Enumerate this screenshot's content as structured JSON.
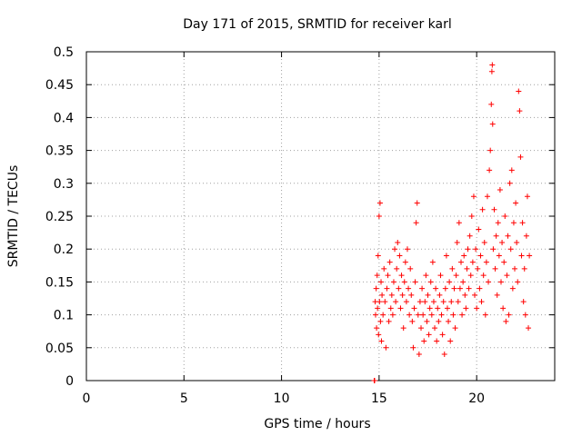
{
  "chart_data": {
    "type": "scatter",
    "title": "Day 171 of 2015, SRMTID for receiver karl",
    "xlabel": "GPS time / hours",
    "ylabel": "SRMTID / TECUs",
    "xlim": [
      0,
      24
    ],
    "ylim": [
      0,
      0.5
    ],
    "xticks": [
      0,
      5,
      10,
      15,
      20
    ],
    "xtick_labels": [
      "0",
      "5",
      "10",
      "15",
      "20"
    ],
    "yticks": [
      0,
      0.05,
      0.1,
      0.15,
      0.2,
      0.25,
      0.3,
      0.35,
      0.4,
      0.45,
      0.5
    ],
    "ytick_labels": [
      "0",
      "0.05",
      "0.1",
      "0.15",
      "0.2",
      "0.25",
      "0.3",
      "0.35",
      "0.4",
      "0.45",
      "0.5"
    ],
    "grid": true,
    "marker": "plus",
    "color": "#ff0000",
    "series": [
      {
        "points": [
          [
            14.75,
            0.0
          ],
          [
            14.76,
            0.0
          ],
          [
            14.77,
            0.0
          ],
          [
            14.8,
            0.12
          ],
          [
            14.82,
            0.1
          ],
          [
            14.85,
            0.14
          ],
          [
            14.87,
            0.08
          ],
          [
            14.9,
            0.16
          ],
          [
            14.92,
            0.11
          ],
          [
            14.95,
            0.19
          ],
          [
            14.97,
            0.07
          ],
          [
            15.0,
            0.25
          ],
          [
            15.02,
            0.12
          ],
          [
            15.05,
            0.27
          ],
          [
            15.07,
            0.09
          ],
          [
            15.1,
            0.15
          ],
          [
            15.12,
            0.06
          ],
          [
            15.15,
            0.13
          ],
          [
            15.2,
            0.1
          ],
          [
            15.25,
            0.17
          ],
          [
            15.3,
            0.12
          ],
          [
            15.35,
            0.05
          ],
          [
            15.4,
            0.14
          ],
          [
            15.45,
            0.16
          ],
          [
            15.5,
            0.09
          ],
          [
            15.55,
            0.18
          ],
          [
            15.6,
            0.11
          ],
          [
            15.65,
            0.13
          ],
          [
            15.7,
            0.1
          ],
          [
            15.75,
            0.15
          ],
          [
            15.8,
            0.2
          ],
          [
            15.85,
            0.12
          ],
          [
            15.9,
            0.17
          ],
          [
            15.95,
            0.21
          ],
          [
            16.0,
            0.14
          ],
          [
            16.05,
            0.19
          ],
          [
            16.1,
            0.11
          ],
          [
            16.15,
            0.16
          ],
          [
            16.2,
            0.13
          ],
          [
            16.25,
            0.08
          ],
          [
            16.3,
            0.15
          ],
          [
            16.35,
            0.18
          ],
          [
            16.4,
            0.12
          ],
          [
            16.45,
            0.2
          ],
          [
            16.5,
            0.14
          ],
          [
            16.55,
            0.1
          ],
          [
            16.6,
            0.17
          ],
          [
            16.65,
            0.13
          ],
          [
            16.7,
            0.09
          ],
          [
            16.75,
            0.05
          ],
          [
            16.8,
            0.11
          ],
          [
            16.85,
            0.15
          ],
          [
            16.9,
            0.24
          ],
          [
            16.95,
            0.27
          ],
          [
            17.0,
            0.1
          ],
          [
            17.05,
            0.04
          ],
          [
            17.1,
            0.12
          ],
          [
            17.15,
            0.08
          ],
          [
            17.2,
            0.14
          ],
          [
            17.25,
            0.1
          ],
          [
            17.3,
            0.06
          ],
          [
            17.35,
            0.12
          ],
          [
            17.4,
            0.16
          ],
          [
            17.45,
            0.09
          ],
          [
            17.5,
            0.13
          ],
          [
            17.55,
            0.07
          ],
          [
            17.6,
            0.11
          ],
          [
            17.65,
            0.15
          ],
          [
            17.7,
            0.1
          ],
          [
            17.75,
            0.18
          ],
          [
            17.8,
            0.12
          ],
          [
            17.85,
            0.08
          ],
          [
            17.9,
            0.14
          ],
          [
            17.95,
            0.06
          ],
          [
            18.0,
            0.11
          ],
          [
            18.05,
            0.09
          ],
          [
            18.1,
            0.13
          ],
          [
            18.15,
            0.16
          ],
          [
            18.2,
            0.1
          ],
          [
            18.25,
            0.07
          ],
          [
            18.3,
            0.12
          ],
          [
            18.35,
            0.04
          ],
          [
            18.4,
            0.14
          ],
          [
            18.45,
            0.19
          ],
          [
            18.5,
            0.11
          ],
          [
            18.55,
            0.09
          ],
          [
            18.6,
            0.15
          ],
          [
            18.65,
            0.06
          ],
          [
            18.7,
            0.12
          ],
          [
            18.75,
            0.17
          ],
          [
            18.8,
            0.1
          ],
          [
            18.85,
            0.14
          ],
          [
            18.9,
            0.08
          ],
          [
            18.95,
            0.16
          ],
          [
            19.0,
            0.21
          ],
          [
            19.05,
            0.12
          ],
          [
            19.1,
            0.24
          ],
          [
            19.15,
            0.14
          ],
          [
            19.2,
            0.18
          ],
          [
            19.25,
            0.1
          ],
          [
            19.3,
            0.15
          ],
          [
            19.35,
            0.19
          ],
          [
            19.4,
            0.13
          ],
          [
            19.45,
            0.11
          ],
          [
            19.5,
            0.17
          ],
          [
            19.55,
            0.2
          ],
          [
            19.6,
            0.14
          ],
          [
            19.65,
            0.22
          ],
          [
            19.7,
            0.16
          ],
          [
            19.75,
            0.25
          ],
          [
            19.8,
            0.18
          ],
          [
            19.85,
            0.28
          ],
          [
            19.9,
            0.13
          ],
          [
            19.95,
            0.2
          ],
          [
            20.0,
            0.11
          ],
          [
            20.05,
            0.17
          ],
          [
            20.1,
            0.23
          ],
          [
            20.15,
            0.14
          ],
          [
            20.2,
            0.19
          ],
          [
            20.25,
            0.12
          ],
          [
            20.3,
            0.26
          ],
          [
            20.35,
            0.16
          ],
          [
            20.4,
            0.21
          ],
          [
            20.45,
            0.1
          ],
          [
            20.5,
            0.18
          ],
          [
            20.55,
            0.28
          ],
          [
            20.6,
            0.15
          ],
          [
            20.65,
            0.32
          ],
          [
            20.7,
            0.35
          ],
          [
            20.75,
            0.42
          ],
          [
            20.78,
            0.47
          ],
          [
            20.8,
            0.48
          ],
          [
            20.82,
            0.39
          ],
          [
            20.85,
            0.2
          ],
          [
            20.9,
            0.26
          ],
          [
            20.95,
            0.17
          ],
          [
            21.0,
            0.22
          ],
          [
            21.05,
            0.13
          ],
          [
            21.1,
            0.24
          ],
          [
            21.15,
            0.19
          ],
          [
            21.2,
            0.29
          ],
          [
            21.25,
            0.15
          ],
          [
            21.3,
            0.21
          ],
          [
            21.35,
            0.11
          ],
          [
            21.4,
            0.18
          ],
          [
            21.45,
            0.25
          ],
          [
            21.5,
            0.09
          ],
          [
            21.55,
            0.16
          ],
          [
            21.6,
            0.22
          ],
          [
            21.65,
            0.1
          ],
          [
            21.7,
            0.3
          ],
          [
            21.75,
            0.2
          ],
          [
            21.8,
            0.32
          ],
          [
            21.85,
            0.14
          ],
          [
            21.9,
            0.24
          ],
          [
            21.95,
            0.17
          ],
          [
            22.0,
            0.27
          ],
          [
            22.05,
            0.21
          ],
          [
            22.1,
            0.15
          ],
          [
            22.15,
            0.44
          ],
          [
            22.2,
            0.41
          ],
          [
            22.25,
            0.34
          ],
          [
            22.3,
            0.19
          ],
          [
            22.35,
            0.24
          ],
          [
            22.4,
            0.12
          ],
          [
            22.45,
            0.17
          ],
          [
            22.5,
            0.1
          ],
          [
            22.55,
            0.22
          ],
          [
            22.6,
            0.28
          ],
          [
            22.65,
            0.08
          ],
          [
            22.7,
            0.19
          ]
        ]
      }
    ]
  }
}
